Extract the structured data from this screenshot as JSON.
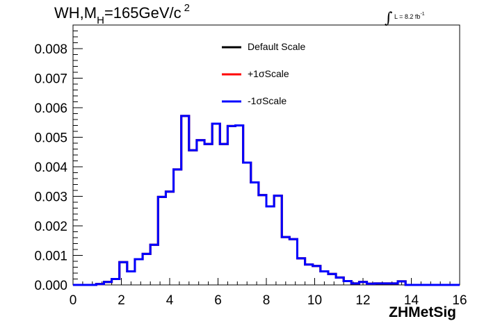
{
  "title": {
    "text": "WH,M",
    "sub": "H",
    "rest": "=165GeV/c",
    "sup": "2"
  },
  "lumi": {
    "int": "∫",
    "text": "L = 8.2 fb",
    "sup": "-1"
  },
  "legend": [
    {
      "label": "Default Scale",
      "color": "#000000"
    },
    {
      "label": "+1σScale",
      "color": "#ff0000"
    },
    {
      "label": "-1σScale",
      "color": "#0000ff"
    }
  ],
  "chart_data": {
    "type": "histogram",
    "xlabel": "ZHMetSig",
    "ylabel": "",
    "xlim": [
      0,
      16
    ],
    "ylim": [
      0,
      0.0088
    ],
    "bin_width": 0.32,
    "x_ticks": [
      "0",
      "2",
      "4",
      "6",
      "8",
      "10",
      "12",
      "14",
      "16"
    ],
    "y_ticks": [
      "0.000",
      "0.001",
      "0.002",
      "0.003",
      "0.004",
      "0.005",
      "0.006",
      "0.007",
      "0.008"
    ],
    "series": [
      {
        "name": "Default Scale",
        "color": "#000000",
        "values": [
          0,
          0,
          0,
          3e-05,
          0.0001,
          0.0002,
          0.00077,
          0.00046,
          0.00087,
          0.00105,
          0.00136,
          0.00298,
          0.00316,
          0.00391,
          0.00572,
          0.00456,
          0.0049,
          0.00477,
          0.00546,
          0.00477,
          0.00538,
          0.0054,
          0.00414,
          0.00347,
          0.00304,
          0.00266,
          0.00302,
          0.00162,
          0.00155,
          0.0009,
          0.00069,
          0.00064,
          0.00046,
          0.00037,
          0.00025,
          0.00013,
          5e-05,
          0.0001,
          4e-05,
          5e-05,
          5e-05,
          5e-05,
          0.00012,
          0,
          0,
          0,
          0,
          0,
          0,
          0
        ]
      },
      {
        "name": "+1σScale",
        "color": "#ff0000",
        "values": [
          0,
          0,
          0,
          3e-05,
          0.0001,
          0.0002,
          0.00077,
          0.00046,
          0.00087,
          0.00105,
          0.00136,
          0.00298,
          0.00316,
          0.00391,
          0.00572,
          0.00456,
          0.0049,
          0.00477,
          0.00546,
          0.00477,
          0.00538,
          0.0054,
          0.00414,
          0.00347,
          0.00304,
          0.00266,
          0.00302,
          0.00162,
          0.00155,
          0.0009,
          0.00069,
          0.00064,
          0.00046,
          0.00037,
          0.00025,
          0.00013,
          5e-05,
          0.0001,
          4e-05,
          5e-05,
          5e-05,
          5e-05,
          0.00012,
          0,
          0,
          0,
          0,
          0,
          0,
          0
        ]
      },
      {
        "name": "-1σScale",
        "color": "#0000ff",
        "values": [
          0,
          0,
          0,
          3e-05,
          0.0001,
          0.0002,
          0.00077,
          0.00046,
          0.00087,
          0.00105,
          0.00136,
          0.00298,
          0.00316,
          0.00391,
          0.00572,
          0.00456,
          0.0049,
          0.00477,
          0.00546,
          0.00477,
          0.00538,
          0.0054,
          0.00414,
          0.00347,
          0.00304,
          0.00266,
          0.00302,
          0.00162,
          0.00155,
          0.0009,
          0.00069,
          0.00064,
          0.00046,
          0.00037,
          0.00025,
          0.00013,
          5e-05,
          0.0001,
          4e-05,
          5e-05,
          5e-05,
          5e-05,
          0.00012,
          0,
          0,
          0,
          0,
          0,
          0,
          0
        ]
      }
    ]
  }
}
